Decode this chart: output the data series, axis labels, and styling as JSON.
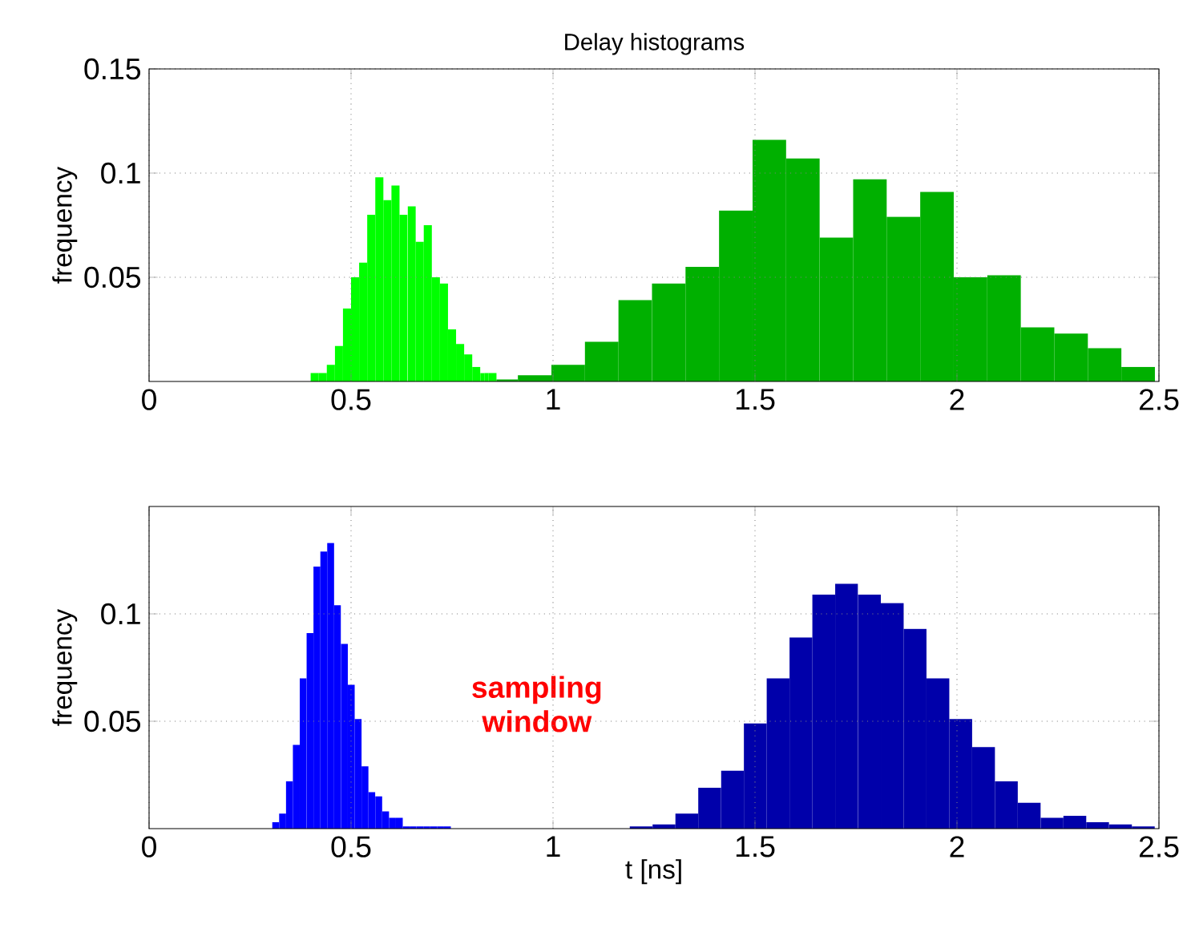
{
  "chart_data": [
    {
      "type": "histogram",
      "title": "Delay histograms",
      "ylabel": "frequency",
      "xlim": [
        0,
        2.5
      ],
      "xticks": [
        0,
        0.5,
        1,
        1.5,
        2,
        2.5
      ],
      "ylim": [
        0,
        0.15
      ],
      "yticks": [
        0.05,
        0.1,
        0.15
      ],
      "grid": true,
      "bins": [
        0.4,
        0.42,
        0.44,
        0.46,
        0.48,
        0.5,
        0.52,
        0.54,
        0.56,
        0.58,
        0.6,
        0.62,
        0.64,
        0.66,
        0.68,
        0.7,
        0.72,
        0.74,
        0.76,
        0.78,
        0.8,
        0.82,
        0.83,
        0.84,
        0.86,
        0.913,
        0.996,
        1.079,
        1.162,
        1.245,
        1.328,
        1.411,
        1.494,
        1.577,
        1.66,
        1.743,
        1.826,
        1.909,
        1.992,
        2.075,
        2.158,
        2.241,
        2.324,
        2.407,
        2.49
      ],
      "series": [
        {
          "color": "#00ff00",
          "values": [
            0.004,
            0.004,
            0.008,
            0.017,
            0.035,
            0.05,
            0.057,
            0.08,
            0.098,
            0.087,
            0.094,
            0.08,
            0.084,
            0.067,
            0.075,
            0.05,
            0.047,
            0.025,
            0.018,
            0.013,
            0.007,
            0.004,
            0.004,
            0.004,
            null,
            null,
            null,
            null,
            null,
            null,
            null,
            null,
            null,
            null,
            null,
            null,
            null,
            null,
            null,
            null,
            null,
            null,
            null,
            null
          ]
        },
        {
          "color": "#00b000",
          "values": [
            null,
            null,
            null,
            null,
            null,
            null,
            null,
            null,
            null,
            null,
            null,
            null,
            null,
            null,
            null,
            null,
            null,
            null,
            null,
            null,
            null,
            null,
            null,
            null,
            0.001,
            0.003,
            0.008,
            0.019,
            0.039,
            0.047,
            0.055,
            0.082,
            0.116,
            0.107,
            0.069,
            0.097,
            0.079,
            0.091,
            0.05,
            0.051,
            0.026,
            0.023,
            0.016,
            0.007
          ]
        }
      ]
    },
    {
      "type": "histogram",
      "ylabel": "frequency",
      "xlabel": "t [ns]",
      "xlim": [
        0,
        2.5
      ],
      "xticks": [
        0,
        0.5,
        1,
        1.5,
        2,
        2.5
      ],
      "ylim": [
        0,
        0.15
      ],
      "yticks": [
        0.05,
        0.1
      ],
      "grid": true,
      "annotations": [
        "sampling window"
      ],
      "bins": [
        0.305,
        0.322,
        0.339,
        0.356,
        0.373,
        0.39,
        0.407,
        0.424,
        0.441,
        0.458,
        0.475,
        0.492,
        0.509,
        0.526,
        0.543,
        0.56,
        0.577,
        0.594,
        0.611,
        0.628,
        0.645,
        0.662,
        0.679,
        0.696,
        0.713,
        0.73,
        0.747,
        1.19,
        1.2465,
        1.303,
        1.3595,
        1.416,
        1.4725,
        1.529,
        1.5855,
        1.642,
        1.6985,
        1.755,
        1.8115,
        1.868,
        1.9245,
        1.981,
        2.0375,
        2.094,
        2.1505,
        2.207,
        2.2635,
        2.32,
        2.3765,
        2.433,
        2.4895
      ],
      "series": [
        {
          "color": "#0000ff",
          "values": [
            0.003,
            0.007,
            0.022,
            0.039,
            0.07,
            0.091,
            0.122,
            0.129,
            0.133,
            0.104,
            0.086,
            0.067,
            0.051,
            0.029,
            0.017,
            0.015,
            0.008,
            0.005,
            0.005,
            0.001,
            0.001,
            0.001,
            0.001,
            0.001,
            0.001,
            0.001,
            null,
            null,
            null,
            null,
            null,
            null,
            null,
            null,
            null,
            null,
            null,
            null,
            null,
            null,
            null,
            null,
            null,
            null,
            null,
            null,
            null,
            null,
            null,
            null
          ]
        },
        {
          "color": "#0000aa",
          "values": [
            null,
            null,
            null,
            null,
            null,
            null,
            null,
            null,
            null,
            null,
            null,
            null,
            null,
            null,
            null,
            null,
            null,
            null,
            null,
            null,
            null,
            null,
            null,
            null,
            null,
            null,
            null,
            0.001,
            0.002,
            0.007,
            0.019,
            0.027,
            0.049,
            0.07,
            0.089,
            0.109,
            0.114,
            0.109,
            0.105,
            0.093,
            0.07,
            0.051,
            0.038,
            0.022,
            0.012,
            0.005,
            0.006,
            0.003,
            0.002,
            0.001
          ]
        }
      ]
    }
  ]
}
